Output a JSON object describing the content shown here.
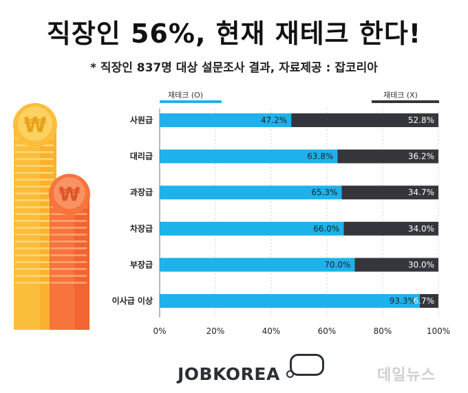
{
  "title": "직장인 56%, 현재 재테크 한다!",
  "subtitle": "* 직장인 837명 대상 설문조사 결과, 자료제공 : 잡코리아",
  "legend": {
    "left": "재테크 (O)",
    "right": "재테크 (X)"
  },
  "colors": {
    "yes": "#1db2ec",
    "no": "#34363b",
    "coin1": "#fbbd3c",
    "coin2": "#f7743c"
  },
  "coin_symbols": [
    "₩",
    "₩"
  ],
  "logo": "JOBKOREA",
  "watermark": "데일뉴스",
  "chart_data": {
    "type": "bar",
    "orientation": "horizontal",
    "stacked": true,
    "categories": [
      "사원급",
      "대리급",
      "과장급",
      "차장급",
      "부장급",
      "이사급 이상"
    ],
    "series": [
      {
        "name": "재테크 (O)",
        "values": [
          47.2,
          63.8,
          65.3,
          66.0,
          70.0,
          93.3
        ],
        "labels": [
          "47.2%",
          "63.8%",
          "65.3%",
          "66.0%",
          "70.0%",
          "93.3%"
        ]
      },
      {
        "name": "재테크 (X)",
        "values": [
          52.8,
          36.2,
          34.7,
          34.0,
          30.0,
          6.7
        ],
        "labels": [
          "52.8%",
          "36.2%",
          "34.7%",
          "34.0%",
          "30.0%",
          "6.7%"
        ]
      }
    ],
    "xlim": [
      0,
      100
    ],
    "xticks": [
      "0%",
      "20%",
      "40%",
      "60%",
      "80%",
      "100%"
    ],
    "grid": true,
    "legend_position": "top"
  }
}
